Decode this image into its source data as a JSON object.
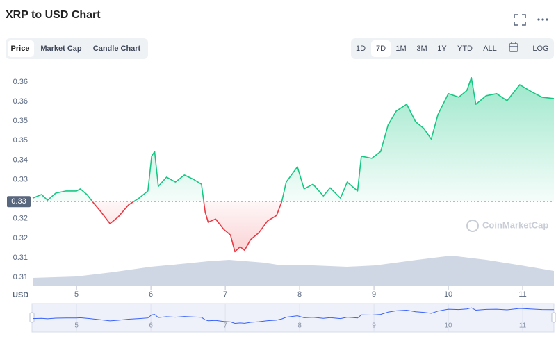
{
  "ui": {
    "title": "XRP to USD Chart",
    "tabs": [
      "Price",
      "Market Cap",
      "Candle Chart"
    ],
    "ranges": [
      "1D",
      "7D",
      "1M",
      "3M",
      "1Y",
      "YTD",
      "ALL"
    ],
    "log": "LOG",
    "currency": "USD",
    "watermark": "CoinMarketCap"
  },
  "chart_data": {
    "type": "line",
    "x": [
      4.41,
      4.53,
      4.61,
      4.72,
      4.86,
      5.0,
      5.05,
      5.14,
      5.23,
      5.33,
      5.45,
      5.56,
      5.7,
      5.84,
      5.96,
      6.01,
      6.05,
      6.1,
      6.21,
      6.33,
      6.45,
      6.57,
      6.68,
      6.73,
      6.77,
      6.87,
      6.98,
      7.07,
      7.13,
      7.2,
      7.26,
      7.34,
      7.45,
      7.57,
      7.69,
      7.76,
      7.82,
      7.97,
      8.06,
      8.18,
      8.32,
      8.41,
      8.55,
      8.64,
      8.78,
      8.83,
      8.97,
      9.09,
      9.19,
      9.3,
      9.44,
      9.56,
      9.67,
      9.77,
      9.86,
      10.0,
      10.14,
      10.25,
      10.31,
      10.37,
      10.51,
      10.65,
      10.79,
      10.96,
      11.12,
      11.26,
      11.42
    ],
    "series": [
      {
        "name": "Price",
        "color": "#16c784",
        "color_below": "#ea3943",
        "values": [
          0.3288,
          0.3298,
          0.3282,
          0.3302,
          0.3308,
          0.3308,
          0.3314,
          0.3298,
          0.3274,
          0.3249,
          0.3216,
          0.3235,
          0.3269,
          0.3288,
          0.3308,
          0.3406,
          0.3419,
          0.3321,
          0.3347,
          0.3333,
          0.3353,
          0.3341,
          0.3327,
          0.3249,
          0.322,
          0.3229,
          0.32,
          0.3184,
          0.3137,
          0.3151,
          0.3141,
          0.3171,
          0.319,
          0.3224,
          0.3239,
          0.3278,
          0.3333,
          0.3376,
          0.3314,
          0.3327,
          0.3294,
          0.3317,
          0.3288,
          0.3333,
          0.3308,
          0.3406,
          0.34,
          0.3419,
          0.3494,
          0.3533,
          0.3552,
          0.3503,
          0.3484,
          0.3454,
          0.3523,
          0.3582,
          0.3572,
          0.3591,
          0.3627,
          0.3552,
          0.3576,
          0.3582,
          0.3562,
          0.3607,
          0.3587,
          0.3572,
          0.3568
        ]
      }
    ],
    "volume": {
      "color": "#cfd6e4",
      "x": [
        4.41,
        5.0,
        5.47,
        6.0,
        6.4,
        6.77,
        7.05,
        7.52,
        7.76,
        8.18,
        8.64,
        9.02,
        9.58,
        10.04,
        10.51,
        10.98,
        11.42
      ],
      "values": [
        12,
        14,
        20,
        28,
        32,
        36,
        38,
        34,
        30,
        30,
        28,
        30,
        38,
        44,
        38,
        30,
        22
      ]
    },
    "y2lim": [
      0,
      100
    ],
    "current": {
      "value": 0.3278,
      "label": "0.33"
    },
    "xlim": [
      4.41,
      11.42
    ],
    "xticks": [
      5,
      6,
      7,
      8,
      9,
      10,
      11
    ],
    "ylim": [
      0.304,
      0.365
    ],
    "yticks": [
      {
        "value": 0.3065,
        "label": "0.31"
      },
      {
        "value": 0.312,
        "label": "0.31"
      },
      {
        "value": 0.3175,
        "label": "0.32"
      },
      {
        "value": 0.323,
        "label": "0.32"
      },
      {
        "value": 0.334,
        "label": "0.33"
      },
      {
        "value": 0.3395,
        "label": "0.34"
      },
      {
        "value": 0.345,
        "label": "0.35"
      },
      {
        "value": 0.3505,
        "label": "0.35"
      },
      {
        "value": 0.356,
        "label": "0.36"
      },
      {
        "value": 0.3615,
        "label": "0.36"
      }
    ]
  }
}
